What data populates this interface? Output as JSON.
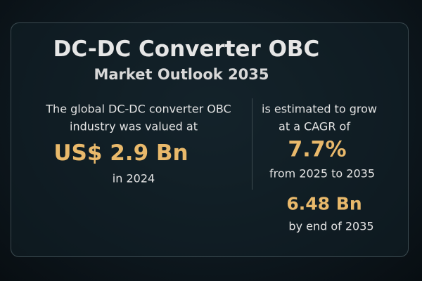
{
  "header": {
    "title": "DC-DC Converter OBC",
    "subtitle": "Market Outlook 2035"
  },
  "left": {
    "lines": [
      "The global DC-DC converter OBC",
      "industry was valued at"
    ],
    "value": "US$ 2.9 Bn",
    "period": "in 2024"
  },
  "right": {
    "lines": [
      "is estimated to grow",
      "at a CAGR of"
    ],
    "cagr": "7.7%",
    "period": "from 2025 to 2035",
    "forecast": "6.48 Bn",
    "forecast_period": "by end of 2035"
  }
}
